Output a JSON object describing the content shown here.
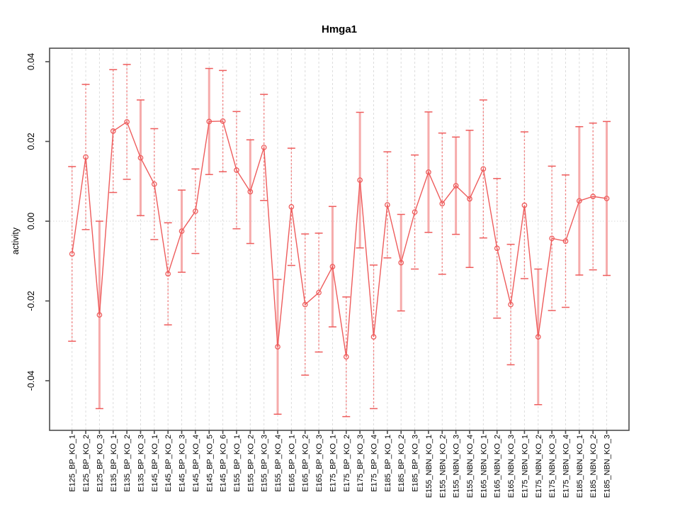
{
  "title": "Hmga1",
  "y_axis": {
    "label": "activity",
    "tick_values": [
      0.04,
      0.02,
      0,
      -0.02,
      -0.04
    ],
    "tick_labels": [
      "0.04",
      "0.02",
      "0.00",
      "-0.02",
      "-0.04"
    ]
  },
  "colors": {
    "series_line": "#ee5c5c",
    "marker": "#ee5c5c",
    "error_bar_solid": "#f6abab",
    "error_bar_dashed": "#f08080",
    "error_bar_cap": "#ee5c5c",
    "grid_vertical": "#dcdcdc",
    "zero_line": "#d8d8d8",
    "plot_border": "#4d4d4d",
    "text": "#000000",
    "background": "#ffffff"
  },
  "chart_data": {
    "type": "line",
    "subtype": "error-bar-plot",
    "title": "Hmga1",
    "xlabel": "",
    "ylabel": "activity",
    "ylim": [
      -0.052,
      0.0435
    ],
    "grid": true,
    "legend": "none",
    "zero_reference_line": 0,
    "categories": [
      "E125_BP_KO_1",
      "E125_BP_KO_2",
      "E125_BP_KO_3",
      "E135_BP_KO_1",
      "E135_BP_KO_2",
      "E135_BP_KO_3",
      "E145_BP_KO_1",
      "E145_BP_KO_2",
      "E145_BP_KO_3",
      "E145_BP_KO_4",
      "E145_BP_KO_5",
      "E145_BP_KO_6",
      "E155_BP_KO_1",
      "E155_BP_KO_2",
      "E155_BP_KO_3",
      "E155_BP_KO_4",
      "E165_BP_KO_1",
      "E165_BP_KO_2",
      "E165_BP_KO_3",
      "E175_BP_KO_1",
      "E175_BP_KO_2",
      "E175_BP_KO_3",
      "E175_BP_KO_4",
      "E185_BP_KO_1",
      "E185_BP_KO_2",
      "E185_BP_KO_3",
      "E155_NBN_KO_1",
      "E155_NBN_KO_2",
      "E155_NBN_KO_3",
      "E155_NBN_KO_4",
      "E165_NBN_KO_1",
      "E165_NBN_KO_2",
      "E165_NBN_KO_3",
      "E175_NBN_KO_1",
      "E175_NBN_KO_2",
      "E175_NBN_KO_3",
      "E175_NBN_KO_4",
      "E185_NBN_KO_1",
      "E185_NBN_KO_2",
      "E185_NBN_KO_3"
    ],
    "series": [
      {
        "name": "activity",
        "values": [
          -0.0082,
          0.0161,
          -0.0235,
          0.0226,
          0.0249,
          0.0159,
          0.0093,
          -0.0132,
          -0.0025,
          0.0025,
          0.025,
          0.0251,
          0.0128,
          0.0074,
          0.0185,
          -0.0315,
          0.0036,
          -0.0209,
          -0.0179,
          -0.0114,
          -0.034,
          0.0103,
          -0.029,
          0.0041,
          -0.0104,
          0.0023,
          0.0123,
          0.0044,
          0.0089,
          0.0056,
          0.0131,
          -0.0068,
          -0.0209,
          0.004,
          -0.029,
          -0.0043,
          -0.005,
          0.0051,
          0.0062,
          0.0057
        ],
        "err_lo": [
          -0.0301,
          -0.0021,
          -0.047,
          0.0072,
          0.0105,
          0.0014,
          -0.0046,
          -0.026,
          -0.0128,
          -0.0081,
          0.0117,
          0.0124,
          -0.0019,
          -0.0056,
          0.0052,
          -0.0484,
          -0.0111,
          -0.0386,
          -0.0328,
          -0.0265,
          -0.049,
          -0.0067,
          -0.047,
          -0.0092,
          -0.0225,
          -0.012,
          -0.0028,
          -0.0133,
          -0.0033,
          -0.0116,
          -0.0042,
          -0.0243,
          -0.036,
          -0.0144,
          -0.046,
          -0.0224,
          -0.0216,
          -0.0135,
          -0.0122,
          -0.0136
        ],
        "err_hi": [
          0.0137,
          0.0343,
          0.0,
          0.038,
          0.0393,
          0.0304,
          0.0232,
          -0.0004,
          0.0078,
          0.0131,
          0.0383,
          0.0378,
          0.0275,
          0.0204,
          0.0318,
          -0.0146,
          0.0183,
          -0.0032,
          -0.003,
          0.0037,
          -0.019,
          0.0273,
          -0.011,
          0.0174,
          0.0017,
          0.0166,
          0.0274,
          0.0221,
          0.0211,
          0.0228,
          0.0304,
          0.0107,
          -0.0058,
          0.0224,
          -0.012,
          0.0138,
          0.0116,
          0.0237,
          0.0246,
          0.025
        ],
        "bar_style": [
          "dashed",
          "dashed",
          "solid",
          "dashed",
          "dashed",
          "solid",
          "dashed",
          "dashed",
          "solid",
          "dashed",
          "solid",
          "dashed",
          "dashed",
          "solid",
          "dashed",
          "solid",
          "dashed",
          "dashed",
          "dashed",
          "solid",
          "dashed",
          "solid",
          "dashed",
          "dashed",
          "solid",
          "dashed",
          "solid",
          "dashed",
          "solid",
          "solid",
          "dashed",
          "dashed",
          "dashed",
          "dashed",
          "solid",
          "dashed",
          "dashed",
          "solid",
          "dashed",
          "solid"
        ]
      }
    ]
  }
}
